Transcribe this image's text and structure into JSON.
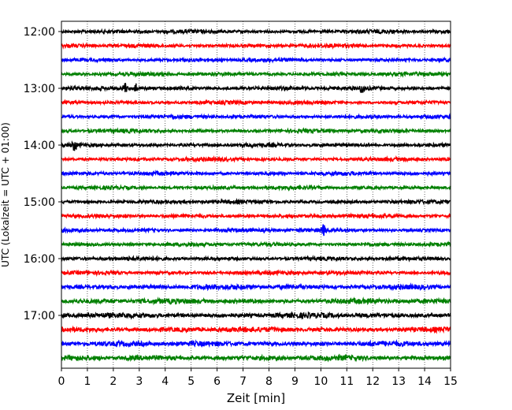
{
  "chart_data": {
    "type": "line",
    "title": "",
    "xlabel": "Zeit  [min]",
    "ylabel": "UTC (Lokalzeit = UTC + 01:00)",
    "xlim": [
      0,
      15
    ],
    "x_ticks": [
      "0",
      "1",
      "2",
      "3",
      "4",
      "5",
      "6",
      "7",
      "8",
      "9",
      "10",
      "11",
      "12",
      "13",
      "14",
      "15"
    ],
    "y_ticks": [
      "12:00",
      "13:00",
      "14:00",
      "15:00",
      "16:00",
      "17:00"
    ],
    "grid": true,
    "legend": "none",
    "trace_interval_minutes": 15,
    "colors": [
      "#000000",
      "#ff0000",
      "#0000ff",
      "#008000"
    ],
    "traces": [
      {
        "start": "12:00",
        "color": "#000000"
      },
      {
        "start": "12:15",
        "color": "#ff0000"
      },
      {
        "start": "12:30",
        "color": "#0000ff"
      },
      {
        "start": "12:45",
        "color": "#008000"
      },
      {
        "start": "13:00",
        "color": "#000000",
        "events": [
          2.45,
          2.85,
          11.6
        ]
      },
      {
        "start": "13:15",
        "color": "#ff0000"
      },
      {
        "start": "13:30",
        "color": "#0000ff"
      },
      {
        "start": "13:45",
        "color": "#008000"
      },
      {
        "start": "14:00",
        "color": "#000000",
        "events": [
          0.5
        ]
      },
      {
        "start": "14:15",
        "color": "#ff0000"
      },
      {
        "start": "14:30",
        "color": "#0000ff"
      },
      {
        "start": "14:45",
        "color": "#008000"
      },
      {
        "start": "15:00",
        "color": "#000000"
      },
      {
        "start": "15:15",
        "color": "#ff0000"
      },
      {
        "start": "15:30",
        "color": "#0000ff",
        "events": [
          10.1
        ]
      },
      {
        "start": "15:45",
        "color": "#008000"
      },
      {
        "start": "16:00",
        "color": "#000000"
      },
      {
        "start": "16:15",
        "color": "#ff0000"
      },
      {
        "start": "16:30",
        "color": "#0000ff"
      },
      {
        "start": "16:45",
        "color": "#008000"
      },
      {
        "start": "17:00",
        "color": "#000000"
      },
      {
        "start": "17:15",
        "color": "#ff0000"
      },
      {
        "start": "17:30",
        "color": "#0000ff"
      },
      {
        "start": "17:45",
        "color": "#008000"
      }
    ]
  }
}
